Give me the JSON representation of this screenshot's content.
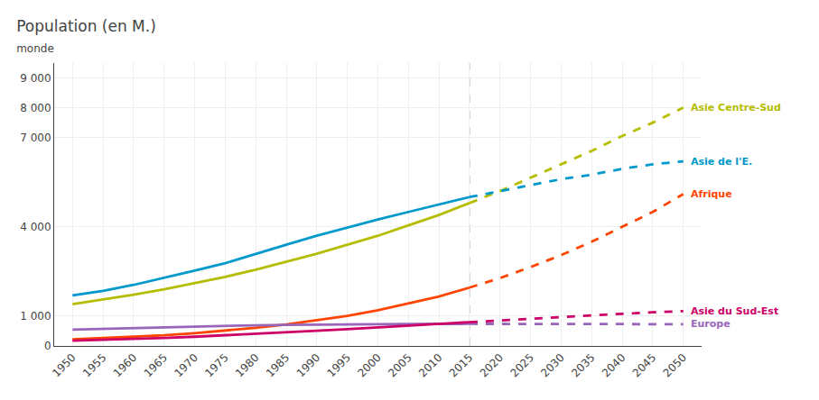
{
  "chart_data": {
    "type": "line",
    "title": "Population (en M.)",
    "subtitle": "monde",
    "x": [
      1950,
      1955,
      1960,
      1965,
      1970,
      1975,
      1980,
      1985,
      1990,
      1995,
      2000,
      2005,
      2010,
      2015,
      2020,
      2025,
      2030,
      2035,
      2040,
      2045,
      2050
    ],
    "forecast_x": 2015,
    "series": [
      {
        "name": "Asie Centre-Sud",
        "color": "#b5bd00",
        "values": [
          1400,
          1550,
          1720,
          1900,
          2100,
          2320,
          2560,
          2820,
          3100,
          3400,
          3700,
          4050,
          4400,
          4800,
          5200,
          5650,
          6100,
          6550,
          7050,
          7500,
          8000
        ]
      },
      {
        "name": "Asie de l'E.",
        "color": "#0099cc",
        "values": [
          1700,
          1850,
          2050,
          2280,
          2530,
          2780,
          3100,
          3400,
          3700,
          3980,
          4250,
          4500,
          4750,
          5000,
          5200,
          5400,
          5600,
          5750,
          5950,
          6100,
          6200
        ]
      },
      {
        "name": "Afrique",
        "color": "#ff4400",
        "values": [
          220,
          260,
          300,
          360,
          430,
          510,
          610,
          720,
          860,
          1010,
          1200,
          1420,
          1660,
          1960,
          2280,
          2650,
          3050,
          3500,
          4000,
          4500,
          5100
        ]
      },
      {
        "name": "Europe",
        "color": "#9966bb",
        "values": [
          550,
          575,
          605,
          640,
          660,
          680,
          695,
          705,
          720,
          730,
          730,
          735,
          738,
          742,
          745,
          742,
          740,
          738,
          735,
          730,
          728
        ]
      },
      {
        "name": "Asie du Sud-Est",
        "color": "#cc0066",
        "values": [
          180,
          205,
          235,
          270,
          310,
          355,
          405,
          458,
          510,
          565,
          620,
          680,
          738,
          800,
          860,
          920,
          975,
          1030,
          1080,
          1130,
          1170
        ]
      }
    ],
    "xlim": [
      1947,
      2053
    ],
    "xticks": [
      1950,
      1955,
      1960,
      1965,
      1970,
      1975,
      1980,
      1985,
      1990,
      1995,
      2000,
      2005,
      2010,
      2015,
      2020,
      2025,
      2030,
      2035,
      2040,
      2045,
      2050
    ],
    "ylim": [
      0,
      9500
    ],
    "yticks": [
      0,
      {
        "value": 1000,
        "label": "1 000"
      },
      {
        "value": 4000,
        "label": "4 000"
      },
      {
        "value": 7000,
        "label": "7 000"
      },
      {
        "value": 8000,
        "label": "8 000"
      },
      {
        "value": 9000,
        "label": "9 000"
      }
    ],
    "grid": true
  }
}
